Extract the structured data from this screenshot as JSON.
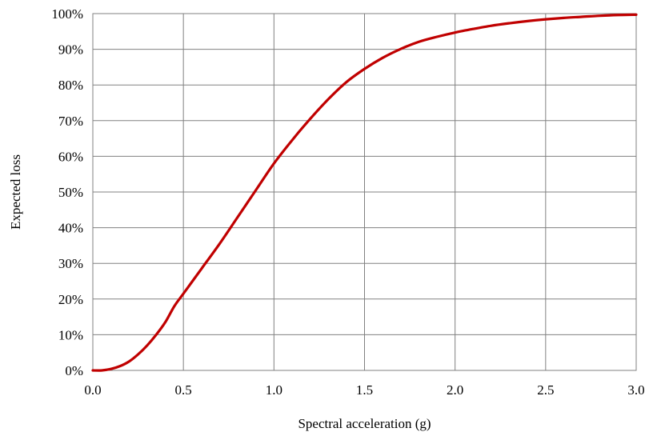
{
  "chart_data": {
    "type": "line",
    "title": "",
    "xlabel": "Spectral acceleration (g)",
    "ylabel": "Expected loss",
    "xlim": [
      0,
      3
    ],
    "ylim": [
      0,
      1
    ],
    "grid": true,
    "legend": "none",
    "line_color": "#C00000",
    "x_ticks": [
      "0.0",
      "0.5",
      "1.0",
      "1.5",
      "2.0",
      "2.5",
      "3.0"
    ],
    "y_ticks": [
      "0%",
      "10%",
      "20%",
      "30%",
      "40%",
      "50%",
      "60%",
      "70%",
      "80%",
      "90%",
      "100%"
    ],
    "series": [
      {
        "x": [
          0.0,
          0.05,
          0.1,
          0.15,
          0.2,
          0.25,
          0.3,
          0.35,
          0.4,
          0.45,
          0.5,
          0.55,
          0.6,
          0.7,
          0.8,
          0.9,
          1.0,
          1.1,
          1.2,
          1.3,
          1.4,
          1.5,
          1.6,
          1.7,
          1.8,
          1.9,
          2.0,
          2.1,
          2.2,
          2.3,
          2.4,
          2.5,
          2.6,
          2.7,
          2.8,
          2.9,
          3.0
        ],
        "y": [
          0.0,
          0.0,
          0.004,
          0.012,
          0.025,
          0.045,
          0.07,
          0.1,
          0.135,
          0.18,
          0.215,
          0.25,
          0.285,
          0.355,
          0.43,
          0.505,
          0.58,
          0.645,
          0.705,
          0.76,
          0.808,
          0.845,
          0.876,
          0.901,
          0.921,
          0.935,
          0.947,
          0.957,
          0.966,
          0.973,
          0.979,
          0.984,
          0.988,
          0.991,
          0.994,
          0.996,
          0.997
        ]
      }
    ]
  }
}
